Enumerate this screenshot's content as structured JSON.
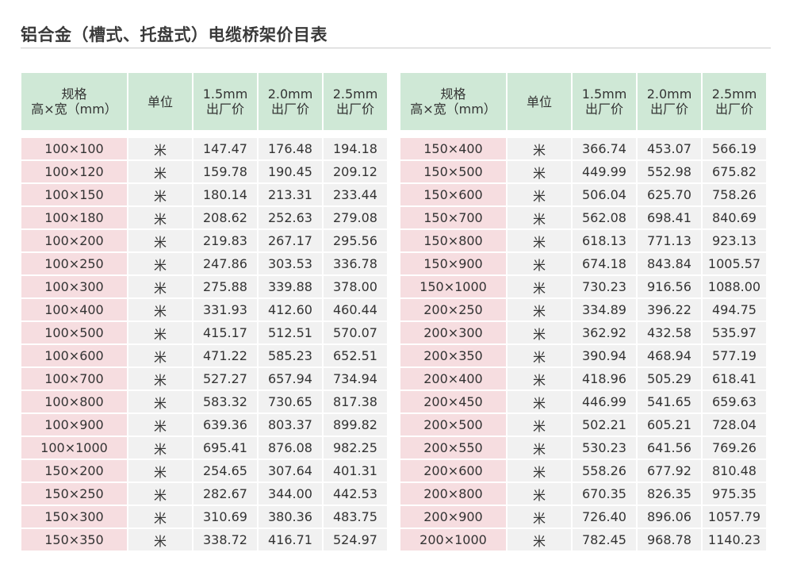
{
  "title": "铝合金（槽式、托盘式）电缆桥架价目表",
  "headers": {
    "spec_line1": "规格",
    "spec_line2": "高×宽（mm）",
    "unit": "单位",
    "p15_line1": "1.5mm",
    "p20_line1": "2.0mm",
    "p25_line1": "2.5mm",
    "price_line2": "出厂价"
  },
  "left_rows": [
    {
      "spec": "100×100",
      "unit": "米",
      "p15": "147.47",
      "p20": "176.48",
      "p25": "194.18"
    },
    {
      "spec": "100×120",
      "unit": "米",
      "p15": "159.78",
      "p20": "190.45",
      "p25": "209.12"
    },
    {
      "spec": "100×150",
      "unit": "米",
      "p15": "180.14",
      "p20": "213.31",
      "p25": "233.44"
    },
    {
      "spec": "100×180",
      "unit": "米",
      "p15": "208.62",
      "p20": "252.63",
      "p25": "279.08"
    },
    {
      "spec": "100×200",
      "unit": "米",
      "p15": "219.83",
      "p20": "267.17",
      "p25": "295.56"
    },
    {
      "spec": "100×250",
      "unit": "米",
      "p15": "247.86",
      "p20": "303.53",
      "p25": "336.78"
    },
    {
      "spec": "100×300",
      "unit": "米",
      "p15": "275.88",
      "p20": "339.88",
      "p25": "378.00"
    },
    {
      "spec": "100×400",
      "unit": "米",
      "p15": "331.93",
      "p20": "412.60",
      "p25": "460.44"
    },
    {
      "spec": "100×500",
      "unit": "米",
      "p15": "415.17",
      "p20": "512.51",
      "p25": "570.07"
    },
    {
      "spec": "100×600",
      "unit": "米",
      "p15": "471.22",
      "p20": "585.23",
      "p25": "652.51"
    },
    {
      "spec": "100×700",
      "unit": "米",
      "p15": "527.27",
      "p20": "657.94",
      "p25": "734.94"
    },
    {
      "spec": "100×800",
      "unit": "米",
      "p15": "583.32",
      "p20": "730.65",
      "p25": "817.38"
    },
    {
      "spec": "100×900",
      "unit": "米",
      "p15": "639.36",
      "p20": "803.37",
      "p25": "899.82"
    },
    {
      "spec": "100×1000",
      "unit": "米",
      "p15": "695.41",
      "p20": "876.08",
      "p25": "982.25"
    },
    {
      "spec": "150×200",
      "unit": "米",
      "p15": "254.65",
      "p20": "307.64",
      "p25": "401.31"
    },
    {
      "spec": "150×250",
      "unit": "米",
      "p15": "282.67",
      "p20": "344.00",
      "p25": "442.53"
    },
    {
      "spec": "150×300",
      "unit": "米",
      "p15": "310.69",
      "p20": "380.36",
      "p25": "483.75"
    },
    {
      "spec": "150×350",
      "unit": "米",
      "p15": "338.72",
      "p20": "416.71",
      "p25": "524.97"
    }
  ],
  "right_rows": [
    {
      "spec": "150×400",
      "unit": "米",
      "p15": "366.74",
      "p20": "453.07",
      "p25": "566.19"
    },
    {
      "spec": "150×500",
      "unit": "米",
      "p15": "449.99",
      "p20": "552.98",
      "p25": "675.82"
    },
    {
      "spec": "150×600",
      "unit": "米",
      "p15": "506.04",
      "p20": "625.70",
      "p25": "758.26"
    },
    {
      "spec": "150×700",
      "unit": "米",
      "p15": "562.08",
      "p20": "698.41",
      "p25": "840.69"
    },
    {
      "spec": "150×800",
      "unit": "米",
      "p15": "618.13",
      "p20": "771.13",
      "p25": "923.13"
    },
    {
      "spec": "150×900",
      "unit": "米",
      "p15": "674.18",
      "p20": "843.84",
      "p25": "1005.57"
    },
    {
      "spec": "150×1000",
      "unit": "米",
      "p15": "730.23",
      "p20": "916.56",
      "p25": "1088.00"
    },
    {
      "spec": "200×250",
      "unit": "米",
      "p15": "334.89",
      "p20": "396.22",
      "p25": "494.75"
    },
    {
      "spec": "200×300",
      "unit": "米",
      "p15": "362.92",
      "p20": "432.58",
      "p25": "535.97"
    },
    {
      "spec": "200×350",
      "unit": "米",
      "p15": "390.94",
      "p20": "468.94",
      "p25": "577.19"
    },
    {
      "spec": "200×400",
      "unit": "米",
      "p15": "418.96",
      "p20": "505.29",
      "p25": "618.41"
    },
    {
      "spec": "200×450",
      "unit": "米",
      "p15": "446.99",
      "p20": "541.65",
      "p25": "659.63"
    },
    {
      "spec": "200×500",
      "unit": "米",
      "p15": "502.21",
      "p20": "605.21",
      "p25": "728.04"
    },
    {
      "spec": "200×550",
      "unit": "米",
      "p15": "530.23",
      "p20": "641.56",
      "p25": "769.26"
    },
    {
      "spec": "200×600",
      "unit": "米",
      "p15": "558.26",
      "p20": "677.92",
      "p25": "810.48"
    },
    {
      "spec": "200×800",
      "unit": "米",
      "p15": "670.35",
      "p20": "826.35",
      "p25": "975.35"
    },
    {
      "spec": "200×900",
      "unit": "米",
      "p15": "726.40",
      "p20": "896.06",
      "p25": "1057.79"
    },
    {
      "spec": "200×1000",
      "unit": "米",
      "p15": "782.45",
      "p20": "968.78",
      "p25": "1140.23"
    }
  ],
  "colors": {
    "header_bg": "#cfe8d6",
    "spec_bg": "#f6dde0",
    "cell_bg": "#f1f1f1",
    "text": "#333333"
  }
}
